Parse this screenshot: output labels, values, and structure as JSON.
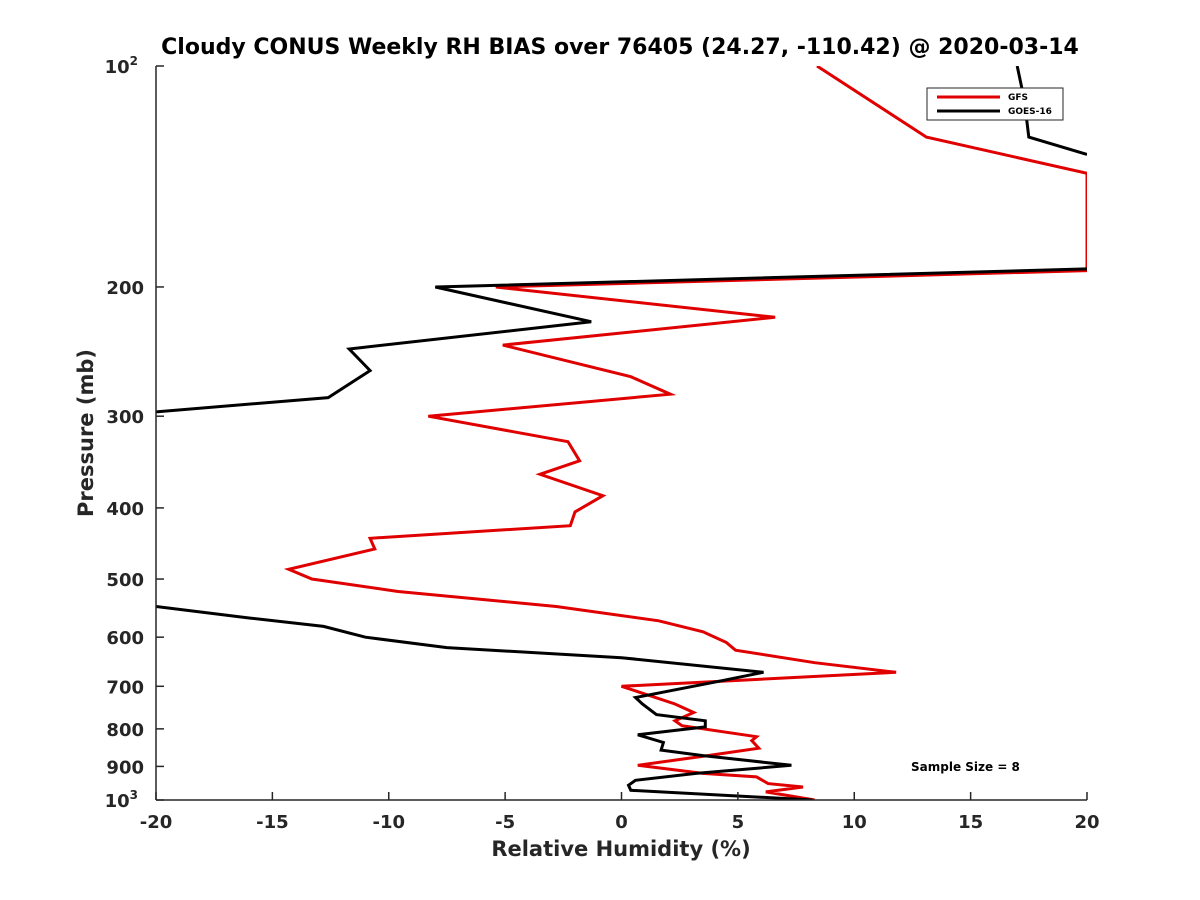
{
  "chart_data": {
    "type": "line",
    "title": "Cloudy CONUS Weekly RH BIAS over 76405 (24.27, -110.42) @ 2020-03-14",
    "xlabel": "Relative Humidity (%)",
    "ylabel": "Pressure (mb)",
    "xlim": [
      -20,
      20
    ],
    "ylim": [
      100,
      1000
    ],
    "yscale": "log",
    "y_reversed": true,
    "grid": false,
    "legend_position": "top-right",
    "x_ticks": [
      {
        "value": -20,
        "label": "-20"
      },
      {
        "value": -15,
        "label": "-15"
      },
      {
        "value": -10,
        "label": "-10"
      },
      {
        "value": -5,
        "label": "-5"
      },
      {
        "value": 0,
        "label": "0"
      },
      {
        "value": 5,
        "label": "5"
      },
      {
        "value": 10,
        "label": "10"
      },
      {
        "value": 15,
        "label": "15"
      },
      {
        "value": 20,
        "label": "20"
      }
    ],
    "y_ticks": [
      {
        "value": 100,
        "base": "10",
        "exp": "2"
      },
      {
        "value": 200,
        "label": "200"
      },
      {
        "value": 300,
        "label": "300"
      },
      {
        "value": 400,
        "label": "400"
      },
      {
        "value": 500,
        "label": "500"
      },
      {
        "value": 600,
        "label": "600"
      },
      {
        "value": 700,
        "label": "700"
      },
      {
        "value": 800,
        "label": "800"
      },
      {
        "value": 900,
        "label": "900"
      },
      {
        "value": 1000,
        "base": "10",
        "exp": "3"
      }
    ],
    "annotation": "Sample Size = 8",
    "series": [
      {
        "name": "GFS",
        "color": "#e00000",
        "points": [
          {
            "x": 8.3,
            "p": 1000
          },
          {
            "x": 6.2,
            "p": 975
          },
          {
            "x": 7.8,
            "p": 960
          },
          {
            "x": 6.3,
            "p": 950
          },
          {
            "x": 5.8,
            "p": 930
          },
          {
            "x": 3.5,
            "p": 920
          },
          {
            "x": 0.7,
            "p": 897
          },
          {
            "x": 3.7,
            "p": 870
          },
          {
            "x": 5.9,
            "p": 850
          },
          {
            "x": 5.6,
            "p": 830
          },
          {
            "x": 5.8,
            "p": 820
          },
          {
            "x": 2.6,
            "p": 792
          },
          {
            "x": 2.3,
            "p": 780
          },
          {
            "x": 3.1,
            "p": 760
          },
          {
            "x": 2.3,
            "p": 740
          },
          {
            "x": 0.0,
            "p": 700
          },
          {
            "x": 11.8,
            "p": 670
          },
          {
            "x": 8.3,
            "p": 650
          },
          {
            "x": 4.9,
            "p": 625
          },
          {
            "x": 4.5,
            "p": 610
          },
          {
            "x": 3.5,
            "p": 590
          },
          {
            "x": 1.6,
            "p": 570
          },
          {
            "x": -2.8,
            "p": 545
          },
          {
            "x": -9.6,
            "p": 520
          },
          {
            "x": -13.3,
            "p": 500
          },
          {
            "x": -14.3,
            "p": 485
          },
          {
            "x": -10.6,
            "p": 455
          },
          {
            "x": -10.8,
            "p": 440
          },
          {
            "x": -2.2,
            "p": 423
          },
          {
            "x": -2.0,
            "p": 405
          },
          {
            "x": -0.8,
            "p": 385
          },
          {
            "x": -3.5,
            "p": 360
          },
          {
            "x": -1.8,
            "p": 345
          },
          {
            "x": -2.3,
            "p": 325
          },
          {
            "x": -8.3,
            "p": 300
          },
          {
            "x": 2.1,
            "p": 280
          },
          {
            "x": 0.4,
            "p": 265
          },
          {
            "x": -5.1,
            "p": 240
          },
          {
            "x": 6.6,
            "p": 220
          },
          {
            "x": -5.4,
            "p": 200
          },
          {
            "x": 20.0,
            "p": 190
          },
          {
            "x": 20.0,
            "p": 140
          },
          {
            "x": 13.1,
            "p": 125
          },
          {
            "x": 8.4,
            "p": 100
          }
        ]
      },
      {
        "name": "GOES-16",
        "color": "#000000",
        "points": [
          {
            "x": 8.2,
            "p": 1000
          },
          {
            "x": 0.4,
            "p": 970
          },
          {
            "x": 0.3,
            "p": 955
          },
          {
            "x": 0.6,
            "p": 940
          },
          {
            "x": 3.2,
            "p": 920
          },
          {
            "x": 7.3,
            "p": 897
          },
          {
            "x": 3.5,
            "p": 870
          },
          {
            "x": 1.7,
            "p": 855
          },
          {
            "x": 1.8,
            "p": 835
          },
          {
            "x": 0.7,
            "p": 815
          },
          {
            "x": 3.6,
            "p": 795
          },
          {
            "x": 3.6,
            "p": 780
          },
          {
            "x": 1.5,
            "p": 765
          },
          {
            "x": 0.9,
            "p": 740
          },
          {
            "x": 0.6,
            "p": 725
          },
          {
            "x": 4.1,
            "p": 690
          },
          {
            "x": 6.1,
            "p": 670
          },
          {
            "x": 0.0,
            "p": 640
          },
          {
            "x": -7.5,
            "p": 620
          },
          {
            "x": -11.0,
            "p": 600
          },
          {
            "x": -12.8,
            "p": 580
          },
          {
            "x": -16.0,
            "p": 565
          },
          {
            "x": -20.0,
            "p": 545
          }
        ]
      },
      {
        "name": "GOES-16 (upper)",
        "legend": false,
        "color": "#000000",
        "points": [
          {
            "x": -20.0,
            "p": 296
          },
          {
            "x": -12.6,
            "p": 283
          },
          {
            "x": -10.8,
            "p": 260
          },
          {
            "x": -11.7,
            "p": 243
          },
          {
            "x": -1.3,
            "p": 223
          },
          {
            "x": -8.0,
            "p": 200
          },
          {
            "x": 20.0,
            "p": 189
          }
        ]
      },
      {
        "name": "GOES-16 (top)",
        "legend": false,
        "color": "#000000",
        "points": [
          {
            "x": 20.0,
            "p": 132
          },
          {
            "x": 17.5,
            "p": 125
          },
          {
            "x": 17.3,
            "p": 111
          },
          {
            "x": 17.0,
            "p": 100
          }
        ]
      }
    ],
    "legend": [
      {
        "name": "GFS",
        "color": "#e00000"
      },
      {
        "name": "GOES-16",
        "color": "#000000"
      }
    ]
  }
}
